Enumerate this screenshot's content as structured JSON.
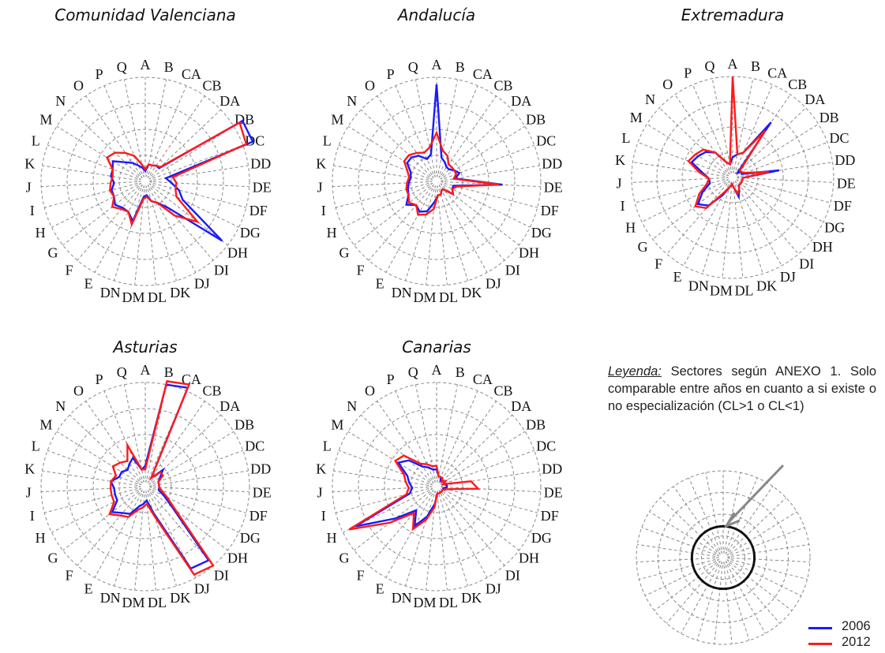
{
  "axis_labels": [
    "A",
    "B",
    "CA",
    "CB",
    "DA",
    "DB",
    "DC",
    "DD",
    "DE",
    "DF",
    "DG",
    "DH",
    "DI",
    "DJ",
    "DK",
    "DL",
    "DM",
    "DN",
    "E",
    "F",
    "G",
    "H",
    "I",
    "J",
    "K",
    "L",
    "M",
    "N",
    "O",
    "P",
    "Q"
  ],
  "legend": {
    "title": "Leyenda:",
    "text": " Sectores según ANEXO 1. Solo comparable entre años en cuanto a si existe o no especialización (CL>1 o CL<1)",
    "series": [
      {
        "name": "2006",
        "color": "#1a1aff"
      },
      {
        "name": "2012",
        "color": "#ff1a1a"
      }
    ]
  },
  "chart_data": [
    {
      "type": "radar",
      "title": "Comunidad Valenciana",
      "categories": [
        "A",
        "B",
        "CA",
        "CB",
        "DA",
        "DB",
        "DC",
        "DD",
        "DE",
        "DF",
        "DG",
        "DH",
        "DI",
        "DJ",
        "DK",
        "DL",
        "DM",
        "DN",
        "E",
        "F",
        "G",
        "H",
        "I",
        "J",
        "K",
        "L",
        "M",
        "N",
        "O",
        "P",
        "Q"
      ],
      "rmax": 3,
      "series": [
        {
          "name": "2006",
          "values": [
            0.3,
            0.5,
            0.5,
            0.55,
            0.55,
            3.3,
            3.3,
            0.6,
            0.75,
            1.0,
            1.2,
            2.8,
            1.0,
            0.7,
            0.6,
            0.4,
            0.45,
            1.2,
            1.0,
            1.0,
            1.1,
            1.0,
            1.0,
            0.9,
            1.0,
            1.0,
            1.1,
            0.8,
            0.65,
            0.5,
            0.4
          ]
        },
        {
          "name": "2012",
          "values": [
            0.35,
            0.5,
            0.5,
            0.55,
            0.6,
            3.2,
            3.1,
            0.8,
            0.9,
            0.9,
            1.0,
            1.9,
            1.3,
            0.7,
            0.6,
            0.45,
            0.5,
            1.3,
            1.0,
            1.05,
            1.2,
            1.0,
            1.05,
            1.0,
            0.95,
            1.0,
            1.3,
            1.2,
            1.0,
            0.8,
            0.5
          ]
        }
      ]
    },
    {
      "type": "radar",
      "title": "Andalucía",
      "categories": [
        "A",
        "B",
        "CA",
        "CB",
        "DA",
        "DB",
        "DC",
        "DD",
        "DE",
        "DF",
        "DG",
        "DH",
        "DI",
        "DJ",
        "DK",
        "DL",
        "DM",
        "DN",
        "E",
        "F",
        "G",
        "H",
        "I",
        "J",
        "K",
        "L",
        "M",
        "N",
        "O",
        "P",
        "Q"
      ],
      "rmax": 3,
      "series": [
        {
          "name": "2006",
          "values": [
            2.8,
            0.7,
            0.6,
            0.5,
            0.5,
            0.6,
            0.7,
            0.55,
            1.9,
            0.5,
            0.5,
            0.6,
            0.3,
            0.3,
            0.4,
            0.4,
            0.6,
            0.9,
            1.0,
            0.9,
            1.1,
            0.9,
            0.85,
            0.8,
            0.75,
            0.8,
            1.0,
            1.0,
            0.9,
            0.7,
            0.8
          ]
        },
        {
          "name": "2012",
          "values": [
            1.4,
            0.9,
            0.8,
            0.6,
            0.6,
            0.6,
            0.6,
            0.5,
            1.8,
            0.6,
            0.5,
            0.6,
            0.3,
            0.3,
            0.4,
            0.4,
            0.8,
            1.0,
            1.1,
            0.9,
            1.0,
            0.9,
            0.9,
            0.85,
            0.8,
            0.9,
            1.1,
            1.1,
            1.0,
            0.9,
            1.0
          ]
        }
      ]
    },
    {
      "type": "radar",
      "title": "Extremadura",
      "categories": [
        "A",
        "B",
        "CA",
        "CB",
        "DA",
        "DB",
        "DC",
        "DD",
        "DE",
        "DF",
        "DG",
        "DH",
        "DI",
        "DJ",
        "DK",
        "DL",
        "DM",
        "DN",
        "E",
        "F",
        "G",
        "H",
        "I",
        "J",
        "K",
        "L",
        "M",
        "N",
        "O",
        "P",
        "Q"
      ],
      "rmax": 3,
      "series": [
        {
          "name": "2006",
          "values": [
            0.6,
            0.7,
            0.8,
            2.0,
            0.2,
            0.3,
            0.3,
            1.4,
            0.3,
            0.3,
            0.3,
            0.3,
            0.3,
            0.4,
            0.6,
            0.3,
            0.2,
            0.3,
            0.6,
            1.1,
            1.3,
            1.0,
            0.7,
            0.7,
            0.9,
            1.3,
            1.2,
            1.1,
            0.9,
            0.5,
            0.4
          ]
        },
        {
          "name": "2012",
          "values": [
            3.0,
            0.7,
            0.8,
            1.7,
            0.3,
            0.3,
            0.4,
            1.1,
            0.3,
            0.3,
            0.3,
            0.3,
            0.3,
            0.4,
            0.5,
            0.3,
            0.2,
            0.3,
            0.5,
            1.2,
            1.4,
            1.1,
            0.8,
            0.7,
            1.0,
            1.4,
            1.3,
            1.2,
            0.9,
            0.5,
            0.4
          ]
        }
      ]
    },
    {
      "type": "radar",
      "title": "Asturias",
      "categories": [
        "A",
        "B",
        "CA",
        "CB",
        "DA",
        "DB",
        "DC",
        "DD",
        "DE",
        "DF",
        "DG",
        "DH",
        "DI",
        "DJ",
        "DK",
        "DL",
        "DM",
        "DN",
        "E",
        "F",
        "G",
        "H",
        "I",
        "J",
        "K",
        "L",
        "M",
        "N",
        "O",
        "P",
        "Q"
      ],
      "rmax": 3,
      "series": [
        {
          "name": "2006",
          "values": [
            0.6,
            3.0,
            3.1,
            0.3,
            0.7,
            0.5,
            0.4,
            0.4,
            0.4,
            0.4,
            0.6,
            1.0,
            2.8,
            2.7,
            0.8,
            0.4,
            0.5,
            0.6,
            0.9,
            1.0,
            1.2,
            0.9,
            0.9,
            0.9,
            1.0,
            0.8,
            0.8,
            0.7,
            0.8,
            0.9,
            0.5
          ]
        },
        {
          "name": "2012",
          "values": [
            0.5,
            3.1,
            3.2,
            0.3,
            0.6,
            0.6,
            0.4,
            0.4,
            0.4,
            0.5,
            0.7,
            1.1,
            3.0,
            2.9,
            0.9,
            0.5,
            0.6,
            0.7,
            1.0,
            1.1,
            1.3,
            1.0,
            1.0,
            1.0,
            1.0,
            0.9,
            1.1,
            1.0,
            0.9,
            1.3,
            0.5
          ]
        }
      ]
    },
    {
      "type": "radar",
      "title": "Canarias",
      "categories": [
        "A",
        "B",
        "CA",
        "CB",
        "DA",
        "DB",
        "DC",
        "DD",
        "DE",
        "DF",
        "DG",
        "DH",
        "DI",
        "DJ",
        "DK",
        "DL",
        "DM",
        "DN",
        "E",
        "F",
        "G",
        "H",
        "I",
        "J",
        "K",
        "L",
        "M",
        "N",
        "O",
        "P",
        "Q"
      ],
      "rmax": 3,
      "series": [
        {
          "name": "2006",
          "values": [
            0.5,
            0.3,
            0.3,
            0.2,
            0.2,
            0.3,
            0.2,
            0.3,
            0.3,
            0.2,
            0.2,
            0.2,
            0.2,
            0.2,
            0.2,
            0.2,
            0.5,
            0.9,
            1.3,
            0.9,
            1.5,
            2.6,
            0.8,
            0.7,
            0.8,
            0.9,
            1.3,
            1.1,
            0.7,
            0.6,
            0.5
          ]
        },
        {
          "name": "2012",
          "values": [
            0.6,
            0.3,
            0.3,
            0.3,
            0.2,
            0.3,
            0.2,
            1.0,
            1.2,
            0.3,
            0.2,
            0.2,
            0.2,
            0.2,
            0.2,
            0.2,
            0.6,
            1.0,
            1.4,
            1.0,
            1.7,
            2.8,
            0.9,
            0.8,
            0.9,
            1.0,
            1.4,
            1.3,
            0.8,
            0.7,
            0.6
          ]
        }
      ]
    }
  ]
}
